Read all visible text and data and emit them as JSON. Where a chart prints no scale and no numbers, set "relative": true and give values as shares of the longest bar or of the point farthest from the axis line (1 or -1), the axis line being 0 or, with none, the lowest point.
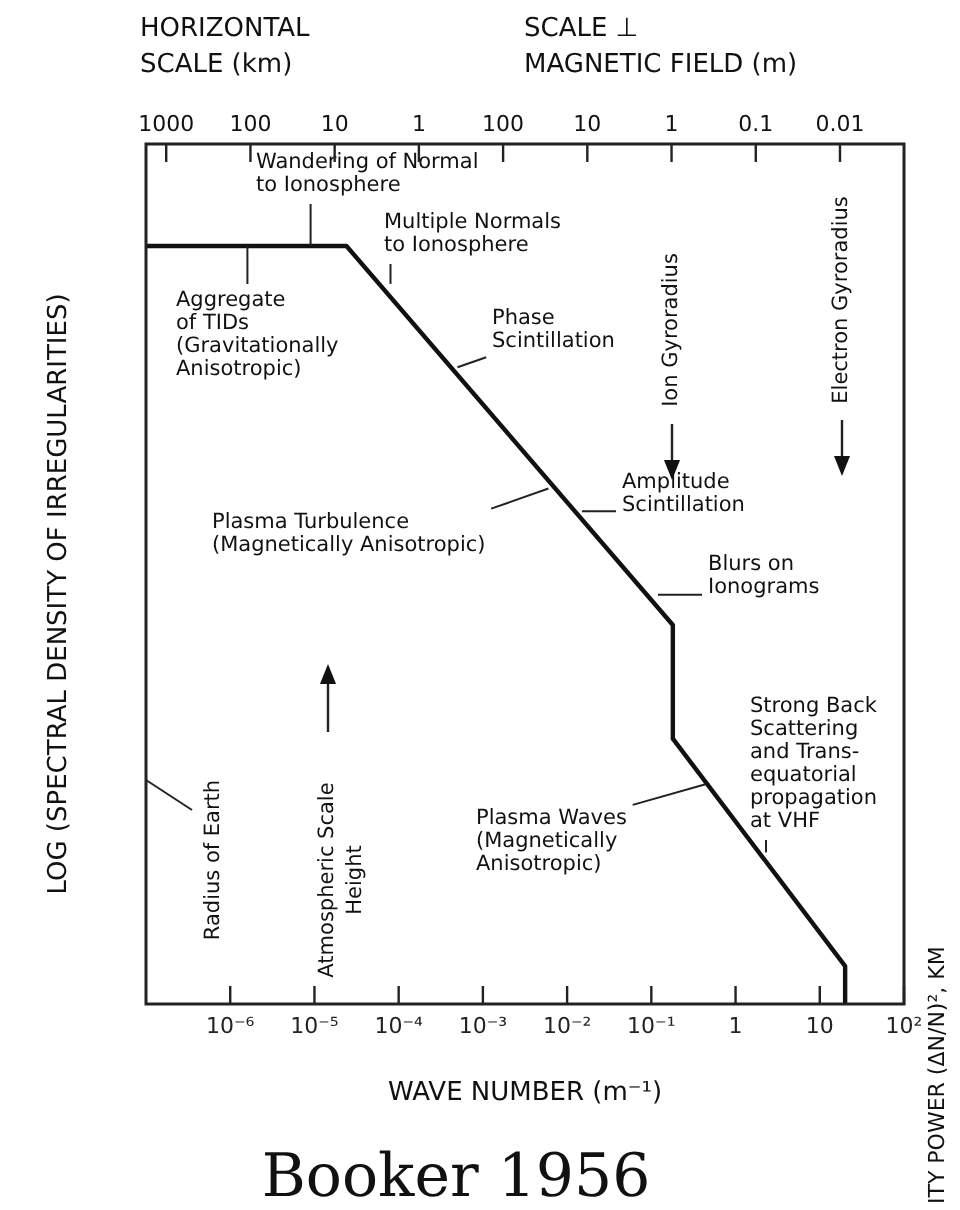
{
  "chart_data": {
    "type": "line",
    "relative": true,
    "xlabel": "WAVE NUMBER (m⁻¹)",
    "ylabel": "LOG (SPECTRAL DENSITY OF IRREGULARITIES)",
    "log": "x",
    "grid": false,
    "legend": false,
    "marker": "none",
    "line_style": "solid",
    "xlim": [
      1e-07,
      100
    ],
    "xticks": [
      {
        "value": 1e-06,
        "label": "10⁻⁶"
      },
      {
        "value": 1e-05,
        "label": "10⁻⁵"
      },
      {
        "value": 0.0001,
        "label": "10⁻⁴"
      },
      {
        "value": 0.001,
        "label": "10⁻³"
      },
      {
        "value": 0.01,
        "label": "10⁻²"
      },
      {
        "value": 0.1,
        "label": "10⁻¹"
      },
      1,
      10,
      {
        "value": 100,
        "label": "10²"
      }
    ],
    "series": [
      {
        "color": "#111111",
        "x": [
          1e-07,
          2.4e-05,
          0.18,
          0.18,
          20,
          20
        ],
        "values": [
          1,
          1,
          0.5,
          0.35,
          0.05,
          0
        ]
      }
    ],
    "annotations": [
      {
        "text": "Wandering of Normal\nto Ionosphere",
        "x": 9e-06,
        "y": 1
      },
      {
        "text": "Multiple Normals\nto Ionosphere",
        "x": 8e-05,
        "y": 0.95
      },
      {
        "text": "Aggregate\nof TIDs\n(Gravitationally\nAnisotropic)",
        "x": 1.6e-06,
        "y": 1
      },
      {
        "text": "Phase\nScintillation",
        "x": 0.0005,
        "y": 0.84
      },
      {
        "text": "Plasma Turbulence\n(Magnetically Anisotropic)",
        "x": 0.006,
        "y": 0.68
      },
      {
        "text": "Amplitude\nScintillation",
        "x": 0.015,
        "y": 0.65
      },
      {
        "text": "Blurs on\nIonograms",
        "x": 0.12,
        "y": 0.54
      },
      {
        "text": "Strong Back\nScattering\nand Trans-\nequatorial\npropagation\nat VHF",
        "x": 2.3,
        "y": 0.2
      },
      {
        "text": "Plasma Waves\n(Magnetically\nAnisotropic)",
        "x": 0.44,
        "y": 0.29
      },
      "Radius of Earth",
      "Atmospheric Scale\nHeight",
      "Ion Gyroradius",
      "Electron Gyroradius",
      "Booker 1956",
      "ITY POWER (ΔN/N)², KM",
      "HORIZONTAL\nSCALE (km)",
      "1000",
      "100",
      "10",
      "1",
      "SCALE ⊥\nMAGNETIC FIELD (m)",
      "100",
      "10",
      "1",
      "0.1",
      "0.01"
    ]
  }
}
